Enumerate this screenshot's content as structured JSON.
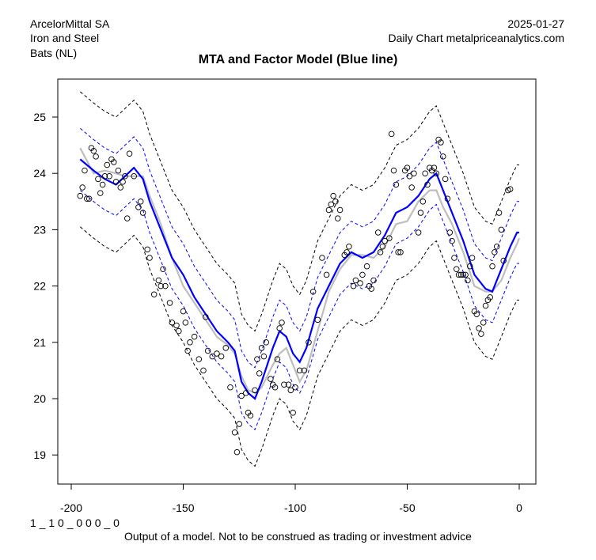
{
  "header": {
    "company": "ArcelorMittal SA",
    "sector": "Iron and Steel",
    "exchange": "Bats (NL)",
    "date": "2025-01-27",
    "source": "Daily Chart metalpriceanalytics.com"
  },
  "footer": {
    "code": "1 _ 1 0 _ 0 0 0 _  0",
    "disclaimer": "Output of a model. Not to be construed as trading or investment advice"
  },
  "chart_data": {
    "type": "line",
    "title": "MTA and Factor Model (Blue line)",
    "xlabel": "",
    "ylabel": "",
    "xlim": [
      -202,
      8
    ],
    "ylim": [
      18.5,
      25.6
    ],
    "xticks": [
      -200,
      -150,
      -100,
      -50,
      0
    ],
    "yticks": [
      19,
      20,
      21,
      22,
      23,
      24,
      25
    ],
    "grid": false,
    "colors": {
      "model": "#0000ff",
      "mta": "#bebebe",
      "inner_band": "#0000ff",
      "outer_band": "#000000",
      "points": "#000000"
    },
    "inner_band_halfwidth": 0.55,
    "outer_band_halfwidth": 1.2,
    "x": [
      -196,
      -190,
      -185,
      -180,
      -176,
      -172,
      -168,
      -165,
      -160,
      -155,
      -150,
      -145,
      -140,
      -135,
      -130,
      -127,
      -124,
      -121,
      -118,
      -115,
      -110,
      -107,
      -104,
      -101,
      -98,
      -95,
      -90,
      -85,
      -80,
      -75,
      -70,
      -65,
      -60,
      -55,
      -50,
      -45,
      -40,
      -37,
      -34,
      -30,
      -25,
      -20,
      -15,
      -12,
      -8,
      -4,
      -1,
      0
    ],
    "series": [
      {
        "name": "Factor Model (Blue line)",
        "values": [
          24.25,
          24.05,
          23.9,
          23.8,
          23.95,
          24.1,
          23.9,
          23.5,
          23.0,
          22.5,
          22.2,
          21.8,
          21.5,
          21.2,
          21.0,
          20.85,
          20.3,
          20.1,
          20.0,
          20.3,
          20.9,
          21.2,
          21.1,
          20.8,
          20.65,
          20.9,
          21.6,
          22.0,
          22.4,
          22.6,
          22.5,
          22.6,
          22.9,
          23.3,
          23.4,
          23.6,
          23.9,
          24.0,
          23.7,
          23.3,
          22.8,
          22.2,
          21.95,
          21.9,
          22.3,
          22.7,
          22.95,
          22.95
        ]
      },
      {
        "name": "MTA",
        "values": [
          24.45,
          24.0,
          24.05,
          24.0,
          23.95,
          23.95,
          23.95,
          23.6,
          23.1,
          22.5,
          22.0,
          21.7,
          21.4,
          21.1,
          20.95,
          20.8,
          20.4,
          20.15,
          20.1,
          20.2,
          20.6,
          20.8,
          20.9,
          20.6,
          20.3,
          20.5,
          21.2,
          21.9,
          22.3,
          22.55,
          22.55,
          22.5,
          22.7,
          23.1,
          23.15,
          23.5,
          23.7,
          23.7,
          23.4,
          23.1,
          22.6,
          22.0,
          21.9,
          21.9,
          22.1,
          22.5,
          22.75,
          22.85
        ]
      }
    ],
    "points": [
      [
        -196,
        23.6
      ],
      [
        -195,
        23.75
      ],
      [
        -194,
        24.05
      ],
      [
        -193,
        23.55
      ],
      [
        -192,
        23.55
      ],
      [
        -191,
        24.45
      ],
      [
        -190,
        24.4
      ],
      [
        -189,
        24.3
      ],
      [
        -188,
        23.9
      ],
      [
        -187,
        23.65
      ],
      [
        -186,
        23.8
      ],
      [
        -185,
        23.95
      ],
      [
        -184,
        24.15
      ],
      [
        -183,
        23.95
      ],
      [
        -182,
        24.25
      ],
      [
        -181,
        24.2
      ],
      [
        -180,
        23.85
      ],
      [
        -179,
        24.05
      ],
      [
        -178,
        23.75
      ],
      [
        -177,
        23.85
      ],
      [
        -176,
        23.95
      ],
      [
        -175,
        23.2
      ],
      [
        -174,
        24.35
      ],
      [
        -172,
        23.95
      ],
      [
        -170,
        23.4
      ],
      [
        -169,
        23.5
      ],
      [
        -168,
        23.3
      ],
      [
        -166,
        22.65
      ],
      [
        -165,
        22.5
      ],
      [
        -163,
        21.85
      ],
      [
        -161,
        22.1
      ],
      [
        -160,
        22.0
      ],
      [
        -159,
        22.3
      ],
      [
        -158,
        22.0
      ],
      [
        -156,
        21.7
      ],
      [
        -155,
        21.35
      ],
      [
        -153,
        21.3
      ],
      [
        -152,
        21.2
      ],
      [
        -150,
        21.55
      ],
      [
        -149,
        21.35
      ],
      [
        -148,
        20.85
      ],
      [
        -147,
        21.0
      ],
      [
        -145,
        21.1
      ],
      [
        -143,
        20.7
      ],
      [
        -141,
        20.5
      ],
      [
        -140,
        21.45
      ],
      [
        -139,
        20.85
      ],
      [
        -137,
        20.75
      ],
      [
        -135,
        20.8
      ],
      [
        -133,
        20.75
      ],
      [
        -131,
        20.9
      ],
      [
        -129,
        20.2
      ],
      [
        -127,
        19.4
      ],
      [
        -126,
        19.05
      ],
      [
        -125,
        19.55
      ],
      [
        -124,
        20.05
      ],
      [
        -122,
        20.1
      ],
      [
        -121,
        19.75
      ],
      [
        -120,
        19.7
      ],
      [
        -118,
        20.15
      ],
      [
        -117,
        20.7
      ],
      [
        -116,
        20.45
      ],
      [
        -115,
        20.9
      ],
      [
        -114,
        20.75
      ],
      [
        -113,
        21.0
      ],
      [
        -111,
        20.35
      ],
      [
        -110,
        20.25
      ],
      [
        -109,
        20.2
      ],
      [
        -108,
        20.7
      ],
      [
        -107,
        21.25
      ],
      [
        -106,
        21.35
      ],
      [
        -105,
        20.25
      ],
      [
        -103,
        20.25
      ],
      [
        -102,
        20.15
      ],
      [
        -101,
        19.75
      ],
      [
        -100,
        20.2
      ],
      [
        -98,
        20.5
      ],
      [
        -96,
        20.5
      ],
      [
        -94,
        21.0
      ],
      [
        -92,
        21.9
      ],
      [
        -90,
        21.4
      ],
      [
        -88,
        22.5
      ],
      [
        -86,
        22.2
      ],
      [
        -85,
        23.35
      ],
      [
        -84,
        23.45
      ],
      [
        -83,
        23.6
      ],
      [
        -82,
        23.5
      ],
      [
        -81,
        23.2
      ],
      [
        -80,
        23.35
      ],
      [
        -78,
        22.55
      ],
      [
        -77,
        22.6
      ],
      [
        -76,
        22.7
      ],
      [
        -74,
        22.0
      ],
      [
        -73,
        22.1
      ],
      [
        -71,
        22.05
      ],
      [
        -70,
        22.2
      ],
      [
        -68,
        22.35
      ],
      [
        -67,
        22.0
      ],
      [
        -66,
        21.95
      ],
      [
        -65,
        22.1
      ],
      [
        -63,
        22.95
      ],
      [
        -62,
        22.6
      ],
      [
        -61,
        22.7
      ],
      [
        -60,
        22.8
      ],
      [
        -58,
        22.85
      ],
      [
        -57,
        24.7
      ],
      [
        -56,
        24.05
      ],
      [
        -55,
        23.8
      ],
      [
        -54,
        22.6
      ],
      [
        -53,
        22.6
      ],
      [
        -51,
        24.05
      ],
      [
        -50,
        24.1
      ],
      [
        -49,
        23.95
      ],
      [
        -48,
        23.75
      ],
      [
        -47,
        24.0
      ],
      [
        -45,
        22.95
      ],
      [
        -44,
        23.3
      ],
      [
        -43,
        23.5
      ],
      [
        -42,
        24.0
      ],
      [
        -41,
        23.8
      ],
      [
        -40,
        24.1
      ],
      [
        -39,
        24.05
      ],
      [
        -38,
        24.1
      ],
      [
        -37,
        24.0
      ],
      [
        -36,
        24.6
      ],
      [
        -35,
        24.55
      ],
      [
        -34,
        24.3
      ],
      [
        -33,
        23.9
      ],
      [
        -32,
        23.55
      ],
      [
        -31,
        22.95
      ],
      [
        -30,
        22.8
      ],
      [
        -29,
        22.5
      ],
      [
        -28,
        22.3
      ],
      [
        -27,
        22.2
      ],
      [
        -26,
        22.2
      ],
      [
        -25,
        22.2
      ],
      [
        -24,
        22.2
      ],
      [
        -23,
        22.1
      ],
      [
        -22,
        22.35
      ],
      [
        -21,
        22.5
      ],
      [
        -20,
        21.55
      ],
      [
        -19,
        21.5
      ],
      [
        -18,
        21.25
      ],
      [
        -17,
        21.15
      ],
      [
        -16,
        21.35
      ],
      [
        -15,
        21.65
      ],
      [
        -14,
        21.75
      ],
      [
        -13,
        21.8
      ],
      [
        -12,
        22.35
      ],
      [
        -11,
        22.6
      ],
      [
        -10,
        22.7
      ],
      [
        -9,
        23.3
      ],
      [
        -8,
        23.0
      ],
      [
        -7,
        22.45
      ],
      [
        -5,
        23.7
      ],
      [
        -4,
        23.72
      ]
    ]
  }
}
